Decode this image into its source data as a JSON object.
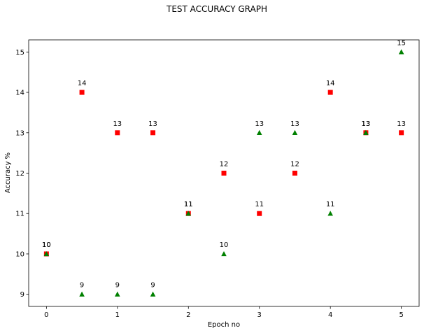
{
  "chart_data": {
    "type": "scatter",
    "title": "TEST ACCURACY GRAPH",
    "xlabel": "Epoch no",
    "ylabel": "Accuracy %",
    "xlim": [
      -0.25,
      5.25
    ],
    "ylim": [
      8.7,
      15.3
    ],
    "xticks": [
      0,
      1,
      2,
      3,
      4,
      5
    ],
    "yticks": [
      9,
      10,
      11,
      12,
      13,
      14,
      15
    ],
    "grid": false,
    "series": [
      {
        "marker": "square",
        "color": "#ff0000",
        "points": [
          {
            "x": 0,
            "y": 10,
            "label": "10"
          },
          {
            "x": 0.5,
            "y": 14,
            "label": "14"
          },
          {
            "x": 1,
            "y": 13,
            "label": "13"
          },
          {
            "x": 1.5,
            "y": 13,
            "label": "13"
          },
          {
            "x": 2,
            "y": 11,
            "label": "11"
          },
          {
            "x": 2.5,
            "y": 12,
            "label": "12"
          },
          {
            "x": 3,
            "y": 11,
            "label": "11"
          },
          {
            "x": 3.5,
            "y": 12,
            "label": "12"
          },
          {
            "x": 4,
            "y": 14,
            "label": "14"
          },
          {
            "x": 4.5,
            "y": 13,
            "label": "13"
          },
          {
            "x": 5,
            "y": 13,
            "label": "13"
          }
        ]
      },
      {
        "marker": "triangle",
        "color": "#008000",
        "points": [
          {
            "x": 0,
            "y": 10,
            "label": "10"
          },
          {
            "x": 0.5,
            "y": 9,
            "label": "9"
          },
          {
            "x": 1,
            "y": 9,
            "label": "9"
          },
          {
            "x": 1.5,
            "y": 9,
            "label": "9"
          },
          {
            "x": 2,
            "y": 11,
            "label": "11"
          },
          {
            "x": 2.5,
            "y": 10,
            "label": "10"
          },
          {
            "x": 3,
            "y": 13,
            "label": "13"
          },
          {
            "x": 3.5,
            "y": 13,
            "label": "13"
          },
          {
            "x": 4,
            "y": 11,
            "label": "11"
          },
          {
            "x": 4.5,
            "y": 13,
            "label": "13"
          },
          {
            "x": 5,
            "y": 15,
            "label": "15"
          }
        ]
      }
    ]
  }
}
